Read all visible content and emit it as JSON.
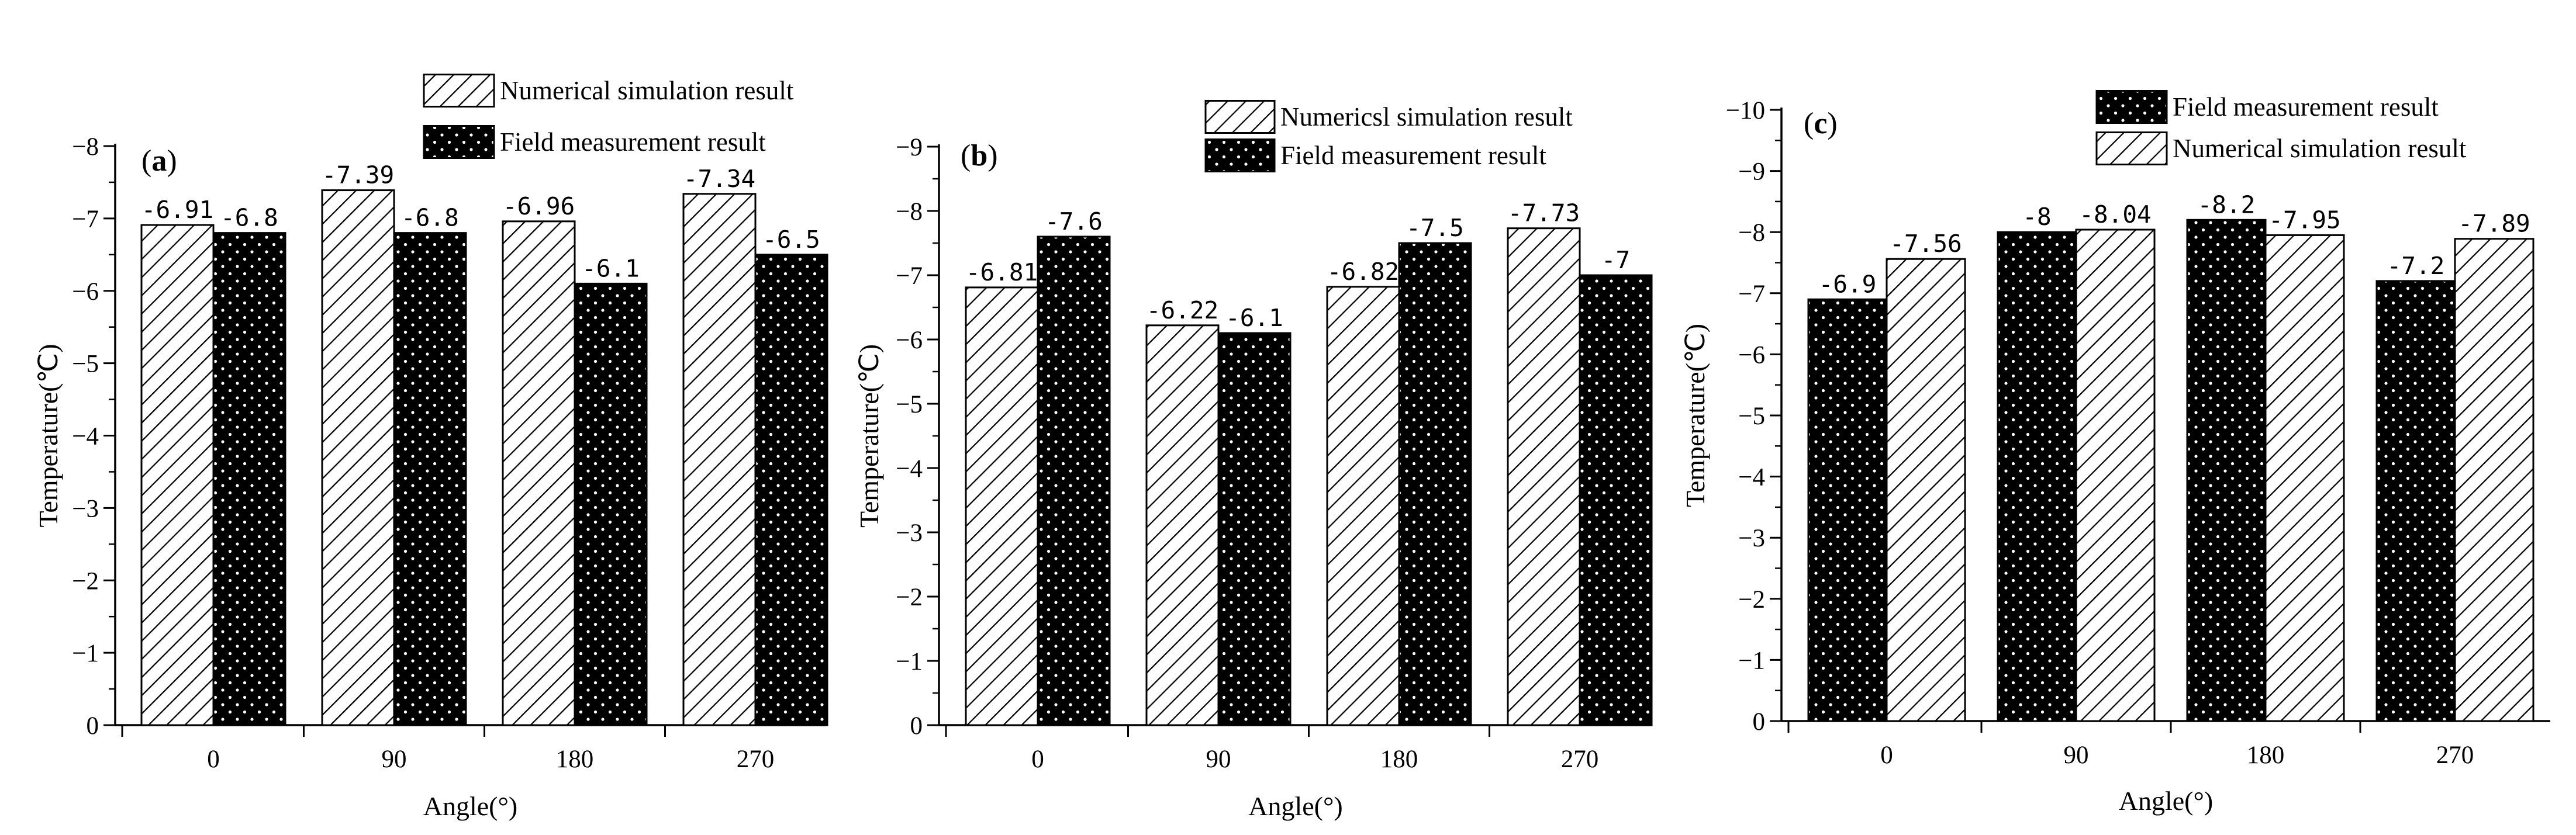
{
  "colors": {
    "ink": "#000000",
    "paper": "#ffffff"
  },
  "icons": {
    "hatch": "diagonal-hatch-pattern",
    "dots": "dotted-black-pattern"
  },
  "chart_data": [
    {
      "type": "bar",
      "panel_label": "a",
      "categories": [
        "0",
        "90",
        "180",
        "270"
      ],
      "series": [
        {
          "name": "Numerical simulation result",
          "pattern": "hatch",
          "values": [
            -6.91,
            -7.39,
            -6.96,
            -7.34
          ],
          "labels": [
            "-6.91",
            "-7.39",
            "-6.96",
            "-7.34"
          ]
        },
        {
          "name": "Field measurement result",
          "pattern": "dots",
          "values": [
            -6.8,
            -6.8,
            -6.1,
            -6.5
          ],
          "labels": [
            "-6.8",
            "-6.8",
            "-6.1",
            "-6.5"
          ]
        }
      ],
      "xlabel": "Angle(°)",
      "ylabel": "Temperature(℃)",
      "ylim": [
        0,
        -8
      ],
      "yticks": [
        0,
        -1,
        -2,
        -3,
        -4,
        -5,
        -6,
        -7,
        -8
      ],
      "ytick_labels": [
        "0",
        "−1",
        "−2",
        "−3",
        "−4",
        "−5",
        "−6",
        "−7",
        "−8"
      ],
      "grid": false,
      "legend_position": "top-right"
    },
    {
      "type": "bar",
      "panel_label": "b",
      "categories": [
        "0",
        "90",
        "180",
        "270"
      ],
      "series": [
        {
          "name": "Numericsl simulation result",
          "pattern": "hatch",
          "values": [
            -6.81,
            -6.22,
            -6.82,
            -7.73
          ],
          "labels": [
            "-6.81",
            "-6.22",
            "-6.82",
            "-7.73"
          ]
        },
        {
          "name": "Field measurement result",
          "pattern": "dots",
          "values": [
            -7.6,
            -6.1,
            -7.5,
            -7
          ],
          "labels": [
            "-7.6",
            "-6.1",
            "-7.5",
            "-7"
          ]
        }
      ],
      "xlabel": "Angle(°)",
      "ylabel": "Temperature(℃)",
      "ylim": [
        0,
        -9
      ],
      "yticks": [
        0,
        -1,
        -2,
        -3,
        -4,
        -5,
        -6,
        -7,
        -8,
        -9
      ],
      "ytick_labels": [
        "0",
        "−1",
        "−2",
        "−3",
        "−4",
        "−5",
        "−6",
        "−7",
        "−8",
        "−9"
      ],
      "grid": false,
      "legend_position": "top-right"
    },
    {
      "type": "bar",
      "panel_label": "c",
      "categories": [
        "0",
        "90",
        "180",
        "270"
      ],
      "series": [
        {
          "name": "Field measurement result",
          "pattern": "dots",
          "values": [
            -6.9,
            -8,
            -8.2,
            -7.2
          ],
          "labels": [
            "-6.9",
            "-8",
            "-8.2",
            "-7.2"
          ]
        },
        {
          "name": "Numerical simulation result",
          "pattern": "hatch",
          "values": [
            -7.56,
            -8.04,
            -7.95,
            -7.89
          ],
          "labels": [
            "-7.56",
            "-8.04",
            "-7.95",
            "-7.89"
          ]
        }
      ],
      "xlabel": "Angle(°)",
      "ylabel": "Temperature(℃)",
      "ylim": [
        0,
        -10
      ],
      "yticks": [
        0,
        -1,
        -2,
        -3,
        -4,
        -5,
        -6,
        -7,
        -8,
        -9,
        -10
      ],
      "ytick_labels": [
        "0",
        "−1",
        "−2",
        "−3",
        "−4",
        "−5",
        "−6",
        "−7",
        "−8",
        "−9",
        "−10"
      ],
      "grid": false,
      "legend_position": "top-right"
    }
  ]
}
